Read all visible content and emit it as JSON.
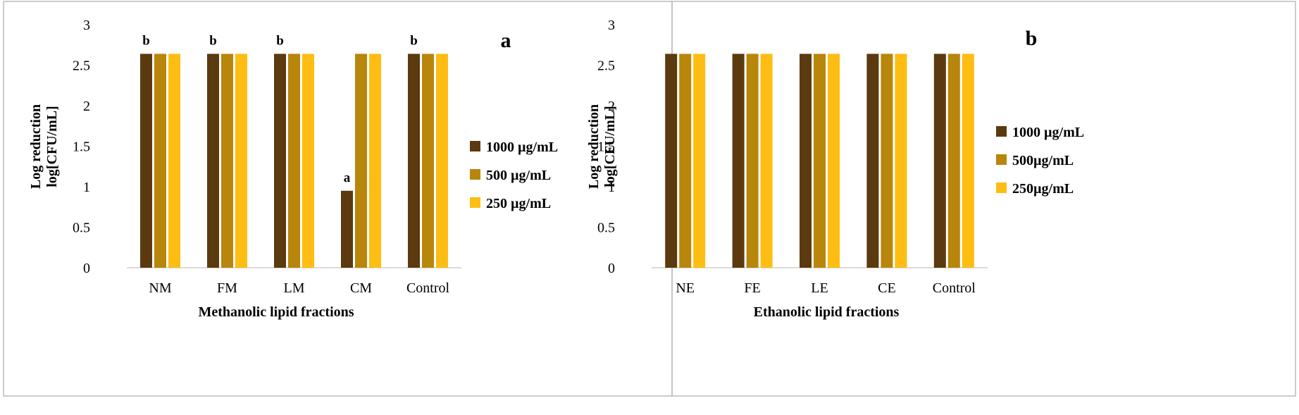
{
  "chart_data": [
    {
      "type": "bar",
      "panel_label": "a",
      "categories": [
        "NM",
        "FM",
        "LM",
        "CM",
        "Control"
      ],
      "series": [
        {
          "name": "1000 µg/mL",
          "values": [
            2.64,
            2.64,
            2.64,
            0.95,
            2.64
          ]
        },
        {
          "name": "500 µg/mL",
          "values": [
            2.64,
            2.64,
            2.64,
            2.64,
            2.64
          ]
        },
        {
          "name": "250 µg/mL",
          "values": [
            2.64,
            2.64,
            2.64,
            2.64,
            2.64
          ]
        }
      ],
      "annotations": [
        "b",
        "b",
        "b",
        "a",
        "b"
      ],
      "xlabel": "Methanolic lipid fractions",
      "ylabel_line1": "Log reduction",
      "ylabel_line2": "log[CFU/mL]",
      "ylim": [
        0,
        3
      ],
      "yticks": [
        "0",
        "0.5",
        "1",
        "1.5",
        "2",
        "2.5",
        "3"
      ],
      "grid": false,
      "legend": "right"
    },
    {
      "type": "bar",
      "panel_label": "b",
      "categories": [
        "NE",
        "FE",
        "LE",
        "CE",
        "Control"
      ],
      "series": [
        {
          "name": "1000 µg/mL",
          "values": [
            2.64,
            2.64,
            2.64,
            2.64,
            2.64
          ]
        },
        {
          "name": "500µg/mL",
          "values": [
            2.64,
            2.64,
            2.64,
            2.64,
            2.64
          ]
        },
        {
          "name": "250µg/mL",
          "values": [
            2.64,
            2.64,
            2.64,
            2.64,
            2.64
          ]
        }
      ],
      "annotations": [],
      "xlabel": "Ethanolic lipid fractions",
      "ylabel_line1": "Log reduction",
      "ylabel_line2": "log[CFU/mL]",
      "ylim": [
        0,
        3
      ],
      "yticks": [
        "0",
        "0.5",
        "1",
        "1.5",
        "2",
        "2.5",
        "3"
      ],
      "grid": false,
      "legend": "right"
    }
  ],
  "colors": {
    "series": [
      "#5b3a0f",
      "#b8860b",
      "#fdbd12"
    ],
    "panel_border": "#bcbcbc",
    "axis": "#d0d0d0",
    "text": "#000000"
  }
}
